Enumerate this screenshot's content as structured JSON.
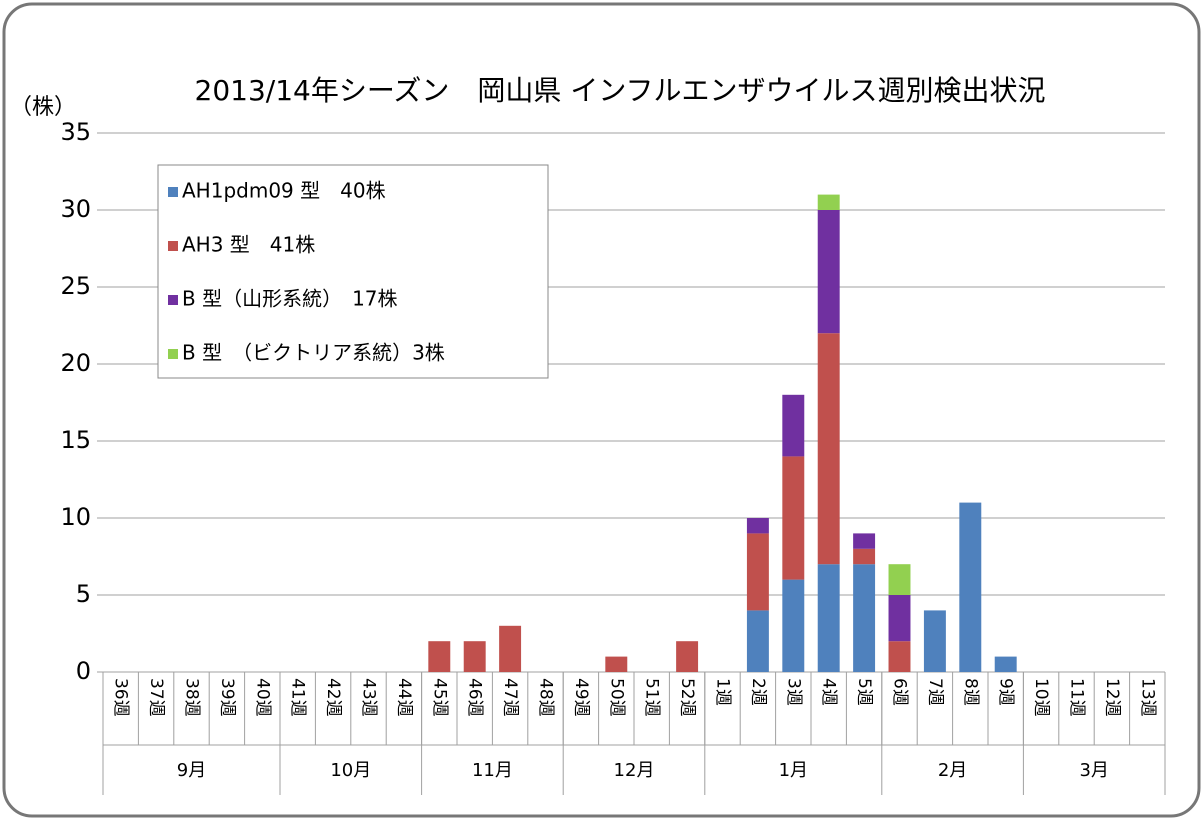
{
  "chart_data": {
    "type": "stacked_bar",
    "title": "2013/14年シーズン　岡山県 インフルエンザウイルス週別検出状況",
    "y_label": "（株）",
    "categories": [
      "36週",
      "37週",
      "38週",
      "39週",
      "40週",
      "41週",
      "42週",
      "43週",
      "44週",
      "45週",
      "46週",
      "47週",
      "48週",
      "49週",
      "50週",
      "51週",
      "52週",
      "1週",
      "2週",
      "3週",
      "4週",
      "5週",
      "6週",
      "7週",
      "8週",
      "9週",
      "10週",
      "11週",
      "12週",
      "13週"
    ],
    "groups": [
      {
        "label": "9月",
        "size": 5
      },
      {
        "label": "10月",
        "size": 4
      },
      {
        "label": "11月",
        "size": 4
      },
      {
        "label": "12月",
        "size": 4
      },
      {
        "label": "1月",
        "size": 5
      },
      {
        "label": "2月",
        "size": 4
      },
      {
        "label": "3月",
        "size": 4
      }
    ],
    "series": [
      {
        "name": "AH1pdm09 型　40株",
        "color": "#4f81bd",
        "values": [
          0,
          0,
          0,
          0,
          0,
          0,
          0,
          0,
          0,
          0,
          0,
          0,
          0,
          0,
          0,
          0,
          0,
          0,
          4,
          6,
          7,
          7,
          0,
          4,
          11,
          1,
          0,
          0,
          0,
          0
        ]
      },
      {
        "name": "AH3 型　41株",
        "color": "#c0504d",
        "values": [
          0,
          0,
          0,
          0,
          0,
          0,
          0,
          0,
          0,
          2,
          2,
          3,
          0,
          0,
          1,
          0,
          2,
          0,
          5,
          8,
          15,
          1,
          2,
          0,
          0,
          0,
          0,
          0,
          0,
          0
        ]
      },
      {
        "name": "B 型（山形系統）　17株",
        "color": "#7030a0",
        "values": [
          0,
          0,
          0,
          0,
          0,
          0,
          0,
          0,
          0,
          0,
          0,
          0,
          0,
          0,
          0,
          0,
          0,
          0,
          1,
          4,
          8,
          1,
          3,
          0,
          0,
          0,
          0,
          0,
          0,
          0
        ]
      },
      {
        "name": "B 型　（ビクトリア系統）3株",
        "color": "#92d050",
        "values": [
          0,
          0,
          0,
          0,
          0,
          0,
          0,
          0,
          0,
          0,
          0,
          0,
          0,
          0,
          0,
          0,
          0,
          0,
          0,
          0,
          1,
          0,
          2,
          0,
          0,
          0,
          0,
          0,
          0,
          0
        ]
      }
    ],
    "ylim": [
      0,
      35
    ],
    "yticks": [
      0,
      5,
      10,
      15,
      20,
      25,
      30,
      35
    ],
    "grid": true,
    "legend": "upper left"
  }
}
